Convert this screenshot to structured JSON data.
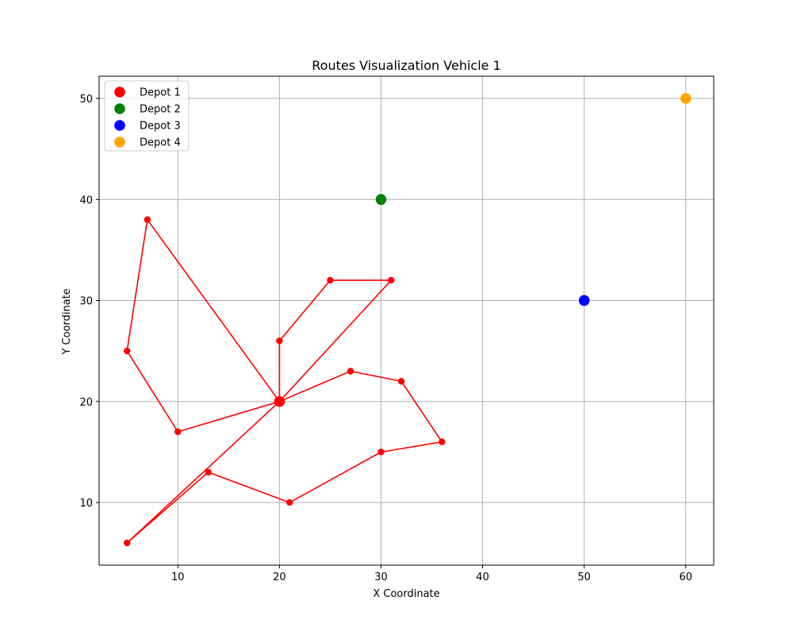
{
  "chart_data": {
    "type": "scatter",
    "title": "Routes Visualization Vehicle 1",
    "xlabel": "X Coordinate",
    "ylabel": "Y Coordinate",
    "xlim": [
      2.25,
      62.75
    ],
    "ylim": [
      3.8,
      52.2
    ],
    "xticks": [
      10,
      20,
      30,
      40,
      50,
      60
    ],
    "yticks": [
      10,
      20,
      30,
      40,
      50
    ],
    "grid": true,
    "legend_position": "top-left",
    "depots": [
      {
        "name": "Depot 1",
        "x": 20,
        "y": 20,
        "color": "#ff0000"
      },
      {
        "name": "Depot 2",
        "x": 30,
        "y": 40,
        "color": "#008000"
      },
      {
        "name": "Depot 3",
        "x": 50,
        "y": 30,
        "color": "#0000ff"
      },
      {
        "name": "Depot 4",
        "x": 60,
        "y": 50,
        "color": "#ffa500"
      }
    ],
    "route_color": "#ff0000",
    "routes": [
      [
        [
          20,
          20
        ],
        [
          10,
          17
        ],
        [
          5,
          25
        ],
        [
          7,
          38
        ],
        [
          20,
          20
        ]
      ],
      [
        [
          20,
          20
        ],
        [
          20,
          26
        ],
        [
          25,
          32
        ],
        [
          31,
          32
        ],
        [
          20,
          20
        ]
      ],
      [
        [
          20,
          20
        ],
        [
          27,
          23
        ],
        [
          32,
          22
        ],
        [
          36,
          16
        ],
        [
          30,
          15
        ],
        [
          21,
          10
        ],
        [
          13,
          13
        ],
        [
          5,
          6
        ],
        [
          20,
          20
        ]
      ]
    ]
  }
}
